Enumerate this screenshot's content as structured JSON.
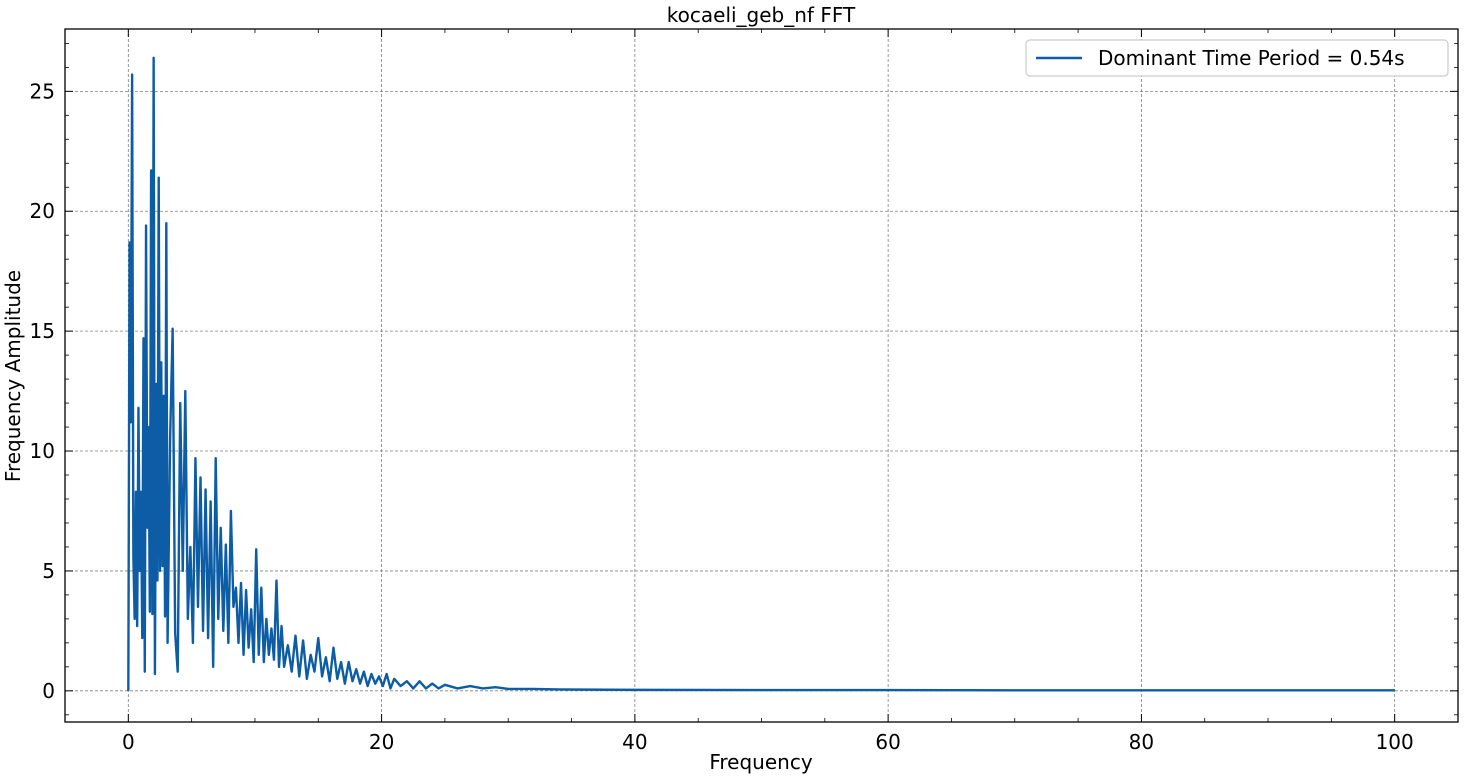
{
  "chart_data": {
    "type": "line",
    "title": "kocaeli_geb_nf FFT",
    "xlabel": "Frequency",
    "ylabel": "Frequency Amplitude",
    "xlim": [
      -5,
      105
    ],
    "ylim": [
      -1.3,
      27.6
    ],
    "xticks": [
      0,
      20,
      40,
      60,
      80,
      100
    ],
    "yticks": [
      0,
      5,
      10,
      15,
      20,
      25
    ],
    "grid": true,
    "legend_position": "top-right",
    "series": [
      {
        "name": "Dominant Time Period = 0.54s",
        "color": "#0c5da5",
        "points": [
          [
            0,
            0
          ],
          [
            0.1,
            18.7
          ],
          [
            0.2,
            11.2
          ],
          [
            0.3,
            25.7
          ],
          [
            0.4,
            5.6
          ],
          [
            0.5,
            3.0
          ],
          [
            0.6,
            8.3
          ],
          [
            0.7,
            2.7
          ],
          [
            0.8,
            11.8
          ],
          [
            0.9,
            5.0
          ],
          [
            1.0,
            8.3
          ],
          [
            1.1,
            2.2
          ],
          [
            1.2,
            14.7
          ],
          [
            1.3,
            0.8
          ],
          [
            1.4,
            19.4
          ],
          [
            1.5,
            6.8
          ],
          [
            1.6,
            11.0
          ],
          [
            1.7,
            3.3
          ],
          [
            1.8,
            21.7
          ],
          [
            1.9,
            3.2
          ],
          [
            2.0,
            26.4
          ],
          [
            2.1,
            0.7
          ],
          [
            2.2,
            12.8
          ],
          [
            2.3,
            4.6
          ],
          [
            2.4,
            21.4
          ],
          [
            2.5,
            5.0
          ],
          [
            2.6,
            13.7
          ],
          [
            2.7,
            5.2
          ],
          [
            2.8,
            12.3
          ],
          [
            2.9,
            3.1
          ],
          [
            3.0,
            19.5
          ],
          [
            3.1,
            2.0
          ],
          [
            3.3,
            10.5
          ],
          [
            3.5,
            15.1
          ],
          [
            3.7,
            2.4
          ],
          [
            3.9,
            0.8
          ],
          [
            4.1,
            12.0
          ],
          [
            4.3,
            5.0
          ],
          [
            4.5,
            12.5
          ],
          [
            4.7,
            3.0
          ],
          [
            4.9,
            6.0
          ],
          [
            5.1,
            2.0
          ],
          [
            5.3,
            9.7
          ],
          [
            5.5,
            3.5
          ],
          [
            5.7,
            8.9
          ],
          [
            5.9,
            2.5
          ],
          [
            6.1,
            8.4
          ],
          [
            6.3,
            2.2
          ],
          [
            6.5,
            7.9
          ],
          [
            6.7,
            1.0
          ],
          [
            6.9,
            9.7
          ],
          [
            7.1,
            3.0
          ],
          [
            7.3,
            6.8
          ],
          [
            7.5,
            2.5
          ],
          [
            7.7,
            6.1
          ],
          [
            7.9,
            2.0
          ],
          [
            8.1,
            7.5
          ],
          [
            8.3,
            3.5
          ],
          [
            8.5,
            4.3
          ],
          [
            8.7,
            2.0
          ],
          [
            8.9,
            4.5
          ],
          [
            9.1,
            1.5
          ],
          [
            9.3,
            4.2
          ],
          [
            9.5,
            1.8
          ],
          [
            9.7,
            3.4
          ],
          [
            9.9,
            1.2
          ],
          [
            10.1,
            5.9
          ],
          [
            10.3,
            1.5
          ],
          [
            10.5,
            4.3
          ],
          [
            10.7,
            1.2
          ],
          [
            10.9,
            3.0
          ],
          [
            11.1,
            1.5
          ],
          [
            11.3,
            2.6
          ],
          [
            11.5,
            1.3
          ],
          [
            11.7,
            4.6
          ],
          [
            11.9,
            1.0
          ],
          [
            12.1,
            2.7
          ],
          [
            12.3,
            1.0
          ],
          [
            12.6,
            1.9
          ],
          [
            12.9,
            0.8
          ],
          [
            13.2,
            2.3
          ],
          [
            13.5,
            0.6
          ],
          [
            13.8,
            2.1
          ],
          [
            14.1,
            0.5
          ],
          [
            14.4,
            1.5
          ],
          [
            14.7,
            0.8
          ],
          [
            15.0,
            2.2
          ],
          [
            15.3,
            0.6
          ],
          [
            15.6,
            1.4
          ],
          [
            15.9,
            0.4
          ],
          [
            16.2,
            1.8
          ],
          [
            16.5,
            0.5
          ],
          [
            16.8,
            1.2
          ],
          [
            17.1,
            0.3
          ],
          [
            17.4,
            1.2
          ],
          [
            17.7,
            0.4
          ],
          [
            18.0,
            0.9
          ],
          [
            18.3,
            0.3
          ],
          [
            18.6,
            0.8
          ],
          [
            18.9,
            0.2
          ],
          [
            19.2,
            0.7
          ],
          [
            19.5,
            0.3
          ],
          [
            19.8,
            0.6
          ],
          [
            20.1,
            0.2
          ],
          [
            20.4,
            0.7
          ],
          [
            20.7,
            0.1
          ],
          [
            21.0,
            0.5
          ],
          [
            21.5,
            0.2
          ],
          [
            22.0,
            0.4
          ],
          [
            22.5,
            0.1
          ],
          [
            23.0,
            0.4
          ],
          [
            23.5,
            0.1
          ],
          [
            24.0,
            0.3
          ],
          [
            24.5,
            0.1
          ],
          [
            25.0,
            0.25
          ],
          [
            26.0,
            0.1
          ],
          [
            27.0,
            0.2
          ],
          [
            28.0,
            0.1
          ],
          [
            29.0,
            0.15
          ],
          [
            30.0,
            0.08
          ],
          [
            32.0,
            0.08
          ],
          [
            34.0,
            0.06
          ],
          [
            36.0,
            0.05
          ],
          [
            40.0,
            0.04
          ],
          [
            50.0,
            0.03
          ],
          [
            60.0,
            0.03
          ],
          [
            70.0,
            0.02
          ],
          [
            80.0,
            0.02
          ],
          [
            90.0,
            0.02
          ],
          [
            100.0,
            0.02
          ]
        ]
      }
    ]
  }
}
